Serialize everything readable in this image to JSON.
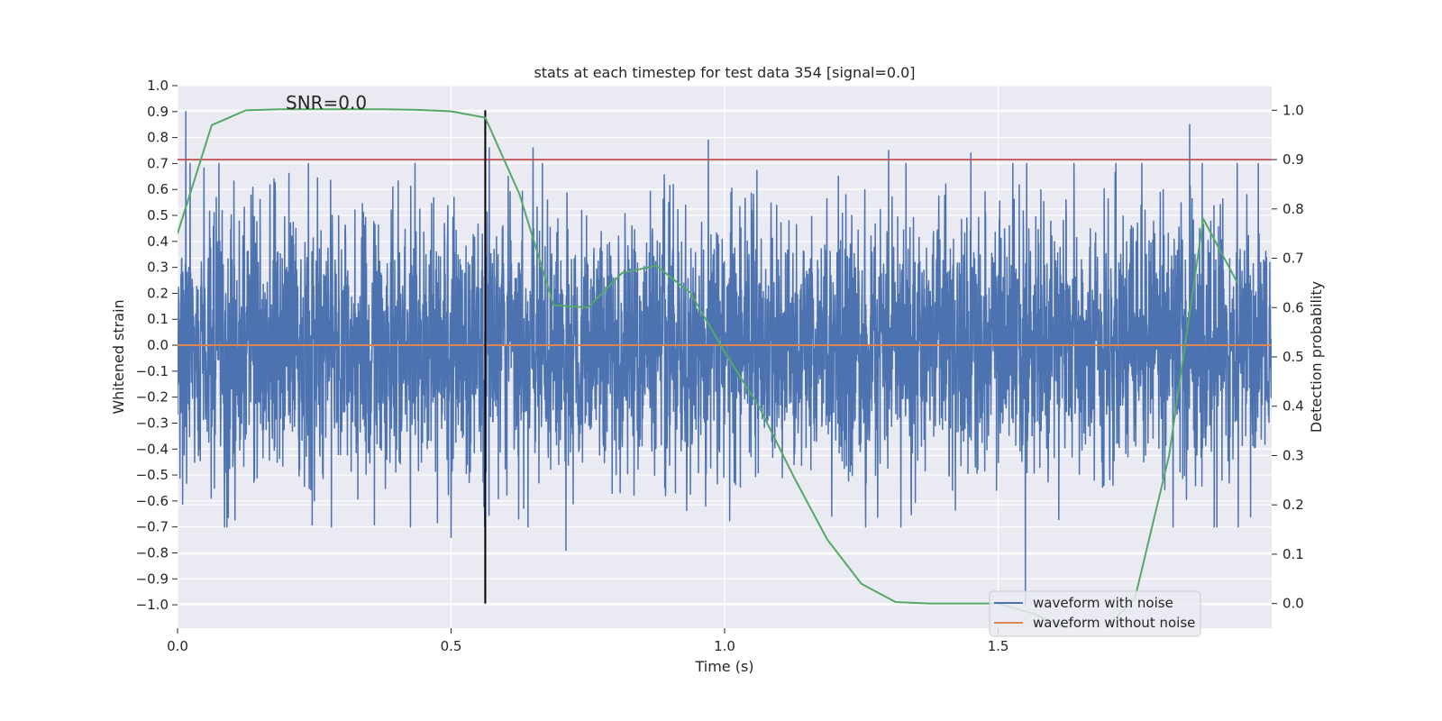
{
  "chart_data": {
    "type": "line",
    "title": "stats at each timestep for test data 354 [signal=0.0]",
    "xlabel": "Time (s)",
    "ylabel": "Whitened strain",
    "y2label": "Detection probability",
    "annotation": "SNR=0.0",
    "xlim": [
      0.0,
      2.0
    ],
    "ylim": [
      -1.09,
      1.0
    ],
    "y2lim": [
      -0.05,
      1.05
    ],
    "x_ticks": [
      "0.0",
      "0.5",
      "1.0",
      "1.5"
    ],
    "y_ticks": [
      "1.0",
      "0.9",
      "0.8",
      "0.7",
      "0.6",
      "0.5",
      "0.4",
      "0.3",
      "0.2",
      "0.1",
      "0.0",
      "−0.1",
      "−0.2",
      "−0.3",
      "−0.4",
      "−0.5",
      "−0.6",
      "−0.7",
      "−0.8",
      "−0.9",
      "−1.0"
    ],
    "y2_ticks": [
      "1.0",
      "0.9",
      "0.8",
      "0.7",
      "0.6",
      "0.5",
      "0.4",
      "0.3",
      "0.2",
      "0.1",
      "0.0"
    ],
    "grid": true,
    "legend_position": "lower-right",
    "series": [
      {
        "name": "waveform with noise",
        "color": "#4c72b0",
        "axis": "left",
        "sample_rate": 2048,
        "duration": 2.0,
        "noise_std": 0.25,
        "peaks": [
          [
            0.015,
            0.9
          ],
          [
            0.25,
            -0.6
          ],
          [
            0.5,
            -0.74
          ],
          [
            0.57,
            0.76
          ],
          [
            0.65,
            0.76
          ],
          [
            0.71,
            -0.79
          ],
          [
            0.97,
            0.79
          ],
          [
            1.3,
            0.75
          ],
          [
            1.45,
            0.74
          ],
          [
            1.55,
            -1.0
          ],
          [
            1.85,
            0.85
          ],
          [
            1.9,
            -0.7
          ]
        ]
      },
      {
        "name": "waveform without noise",
        "color": "#dd8452",
        "axis": "left",
        "x": [
          0.0,
          2.0
        ],
        "y": [
          0.0,
          0.0
        ]
      },
      {
        "name": "detection probability",
        "color": "#55a868",
        "axis": "right",
        "x": [
          0.0,
          0.0625,
          0.125,
          0.1875,
          0.25,
          0.3125,
          0.375,
          0.4375,
          0.5,
          0.5625,
          0.625,
          0.6875,
          0.75,
          0.8125,
          0.875,
          0.9375,
          1.0,
          1.0625,
          1.125,
          1.1875,
          1.25,
          1.3125,
          1.375,
          1.4375,
          1.5,
          1.5625,
          1.625,
          1.6875,
          1.75,
          1.8125,
          1.875,
          1.9375
        ],
        "y": [
          0.75,
          0.97,
          1.0,
          1.002,
          1.002,
          1.002,
          1.002,
          1.001,
          0.998,
          0.985,
          0.83,
          0.605,
          0.6,
          0.67,
          0.685,
          0.63,
          0.51,
          0.4,
          0.26,
          0.13,
          0.04,
          0.003,
          0.0,
          0.0,
          0.0,
          -0.02,
          -0.05,
          -0.06,
          0.01,
          0.3,
          0.78,
          0.65
        ]
      }
    ],
    "reference_lines": [
      {
        "kind": "horizontal",
        "axis": "right",
        "value": 0.9,
        "color": "#c44e52"
      },
      {
        "kind": "vertical",
        "value": 0.5625,
        "from": 0.0,
        "to": 1.0,
        "axis": "right",
        "color": "#000000"
      }
    ]
  }
}
